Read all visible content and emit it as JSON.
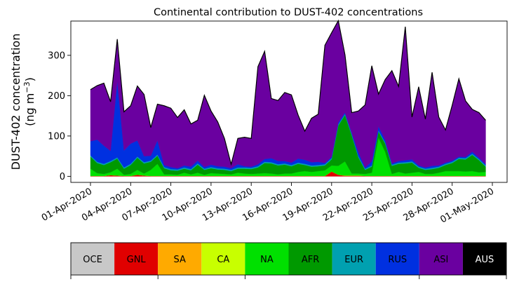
{
  "chart_data": {
    "type": "area",
    "title": "Continental contribution to DUST-402 concentrations",
    "ylabel_line1": "DUST-402 concentration",
    "ylabel_line2": "(ng m",
    "ylabel_sup": "−3",
    "ylabel_close": ")",
    "xlabel": "",
    "stacked": true,
    "start_date": "2020-04-01",
    "step_days": 0.5,
    "ylim": [
      -15,
      385
    ],
    "yticks": [
      0,
      100,
      200,
      300
    ],
    "xtick_labels": [
      "01-Apr-2020",
      "04-Apr-2020",
      "07-Apr-2020",
      "10-Apr-2020",
      "13-Apr-2020",
      "16-Apr-2020",
      "19-Apr-2020",
      "22-Apr-2020",
      "25-Apr-2020",
      "28-Apr-2020",
      "01-May-2020"
    ],
    "x_dates": [
      "2020-04-01 00:00",
      "2020-04-01 12:00",
      "2020-04-02 00:00",
      "2020-04-02 12:00",
      "2020-04-03 00:00",
      "2020-04-03 12:00",
      "2020-04-04 00:00",
      "2020-04-04 12:00",
      "2020-04-05 00:00",
      "2020-04-05 12:00",
      "2020-04-06 00:00",
      "2020-04-06 12:00",
      "2020-04-07 00:00",
      "2020-04-07 12:00",
      "2020-04-08 00:00",
      "2020-04-08 12:00",
      "2020-04-09 00:00",
      "2020-04-09 12:00",
      "2020-04-10 00:00",
      "2020-04-10 12:00",
      "2020-04-11 00:00",
      "2020-04-11 12:00",
      "2020-04-12 00:00",
      "2020-04-12 12:00",
      "2020-04-13 00:00",
      "2020-04-13 12:00",
      "2020-04-14 00:00",
      "2020-04-14 12:00",
      "2020-04-15 00:00",
      "2020-04-15 12:00",
      "2020-04-16 00:00",
      "2020-04-16 12:00",
      "2020-04-17 00:00",
      "2020-04-17 12:00",
      "2020-04-18 00:00",
      "2020-04-18 12:00",
      "2020-04-19 00:00",
      "2020-04-19 12:00",
      "2020-04-20 00:00",
      "2020-04-20 12:00",
      "2020-04-21 00:00",
      "2020-04-21 12:00",
      "2020-04-22 00:00",
      "2020-04-22 12:00",
      "2020-04-23 00:00",
      "2020-04-23 12:00",
      "2020-04-24 00:00",
      "2020-04-24 12:00",
      "2020-04-25 00:00",
      "2020-04-25 12:00",
      "2020-04-26 00:00",
      "2020-04-26 12:00",
      "2020-04-27 00:00",
      "2020-04-27 12:00",
      "2020-04-28 00:00",
      "2020-04-28 12:00",
      "2020-04-29 00:00",
      "2020-04-29 12:00",
      "2020-04-30 00:00",
      "2020-04-30 12:00"
    ],
    "series": [
      {
        "name": "OCE",
        "color": "#c8c8c8",
        "values": [
          0,
          0,
          0,
          0,
          0,
          0,
          0,
          0,
          0,
          0,
          0,
          0,
          0,
          0,
          0,
          0,
          0,
          0,
          0,
          0,
          0,
          0,
          0,
          0,
          0,
          0,
          0,
          0,
          0,
          0,
          0,
          0,
          0,
          0,
          0,
          0,
          0,
          0,
          0,
          0,
          0,
          0,
          0,
          0,
          0,
          0,
          0,
          0,
          0,
          0,
          0,
          0,
          0,
          0,
          0,
          0,
          0,
          0,
          0,
          0
        ]
      },
      {
        "name": "GNL",
        "color": "#e00000",
        "values": [
          1,
          1,
          1,
          3,
          2,
          1,
          1,
          4,
          2,
          1,
          1,
          1,
          1,
          1,
          1,
          1,
          1,
          1,
          1,
          1,
          1,
          1,
          1,
          1,
          1,
          1,
          1,
          1,
          1,
          1,
          1,
          1,
          1,
          1,
          1,
          1,
          12,
          4,
          1,
          1,
          1,
          1,
          1,
          1,
          1,
          1,
          1,
          1,
          1,
          1,
          1,
          1,
          1,
          1,
          1,
          1,
          1,
          1,
          1,
          1
        ]
      },
      {
        "name": "SA",
        "color": "#ffaa00",
        "values": [
          0,
          0,
          0,
          0,
          0,
          0,
          0,
          0,
          0,
          0,
          0,
          0,
          0,
          0,
          0,
          0,
          0,
          0,
          0,
          0,
          0,
          0,
          0,
          0,
          0,
          0,
          0,
          0,
          0,
          0,
          0,
          0,
          0,
          0,
          0,
          0,
          0,
          0,
          1,
          1,
          1,
          0,
          0,
          0,
          0,
          0,
          0,
          0,
          0,
          0,
          0,
          0,
          0,
          0,
          0,
          0,
          0,
          0,
          0,
          0
        ]
      },
      {
        "name": "CA",
        "color": "#c8ff00",
        "values": [
          0,
          0,
          0,
          0,
          0,
          0,
          0,
          0,
          0,
          0,
          0,
          0,
          0,
          0,
          0,
          0,
          0,
          0,
          0,
          0,
          0,
          0,
          0,
          0,
          0,
          0,
          0,
          0,
          0,
          0,
          0,
          0,
          0,
          0,
          0,
          0,
          0,
          0,
          0,
          0,
          0,
          0,
          0,
          0,
          0,
          0,
          0,
          0,
          0,
          0,
          0,
          0,
          0,
          0,
          0,
          0,
          0,
          0,
          0,
          0
        ]
      },
      {
        "name": "NA",
        "color": "#00e000",
        "values": [
          18,
          7,
          5,
          7,
          17,
          3,
          5,
          12,
          5,
          15,
          30,
          4,
          4,
          3,
          8,
          4,
          8,
          3,
          7,
          6,
          5,
          4,
          8,
          6,
          5,
          6,
          7,
          6,
          4,
          6,
          6,
          10,
          12,
          10,
          12,
          14,
          15,
          22,
          35,
          5,
          5,
          5,
          8,
          95,
          60,
          5,
          10,
          6,
          8,
          10,
          5,
          5,
          8,
          12,
          12,
          12,
          11,
          12,
          9,
          10
        ]
      },
      {
        "name": "AFR",
        "color": "#009900",
        "values": [
          30,
          25,
          22,
          25,
          25,
          15,
          22,
          30,
          25,
          20,
          20,
          15,
          10,
          10,
          10,
          10,
          20,
          12,
          12,
          10,
          10,
          8,
          10,
          12,
          12,
          15,
          25,
          25,
          22,
          22,
          18,
          20,
          15,
          13,
          12,
          12,
          15,
          100,
          115,
          95,
          40,
          10,
          15,
          15,
          20,
          20,
          20,
          25,
          25,
          10,
          10,
          12,
          12,
          15,
          20,
          30,
          30,
          40,
          30,
          13
        ]
      },
      {
        "name": "EUR",
        "color": "#00a0b0",
        "values": [
          3,
          3,
          3,
          3,
          3,
          3,
          3,
          3,
          3,
          3,
          3,
          3,
          3,
          3,
          3,
          3,
          3,
          3,
          3,
          3,
          3,
          3,
          3,
          3,
          3,
          3,
          3,
          3,
          3,
          3,
          3,
          3,
          3,
          3,
          3,
          3,
          3,
          3,
          3,
          3,
          3,
          3,
          3,
          3,
          3,
          3,
          3,
          3,
          3,
          3,
          3,
          3,
          3,
          3,
          3,
          3,
          3,
          3,
          3,
          3
        ]
      },
      {
        "name": "RUS",
        "color": "#0030e0",
        "values": [
          35,
          55,
          45,
          25,
          190,
          42,
          50,
          40,
          15,
          12,
          35,
          5,
          5,
          3,
          5,
          6,
          7,
          4,
          6,
          5,
          5,
          4,
          8,
          3,
          3,
          5,
          7,
          10,
          8,
          6,
          6,
          10,
          10,
          8,
          8,
          3,
          3,
          5,
          3,
          3,
          10,
          3,
          10,
          10,
          6,
          3,
          4,
          5,
          5,
          3,
          3,
          5,
          3,
          3,
          3,
          3,
          3,
          5,
          3,
          3
        ]
      },
      {
        "name": "ASI",
        "color": "#6a00a0",
        "values": [
          128,
          134,
          155,
          122,
          103,
          96,
          94,
          135,
          153,
          70,
          90,
          147,
          146,
          126,
          138,
          106,
          100,
          178,
          133,
          110,
          70,
          10,
          64,
          72,
          70,
          242,
          267,
          148,
          150,
          170,
          168,
          108,
          71,
          109,
          118,
          292,
          308,
          252,
          143,
          50,
          102,
          155,
          237,
          80,
          150,
          230,
          185,
          331,
          105,
          195,
          120,
          232,
          120,
          81,
          137,
          193,
          139,
          105,
          112,
          109
        ]
      },
      {
        "name": "AUS",
        "color": "#000000",
        "values": [
          0,
          0,
          0,
          0,
          0,
          0,
          0,
          0,
          0,
          0,
          0,
          0,
          0,
          0,
          0,
          0,
          0,
          0,
          0,
          0,
          0,
          0,
          0,
          0,
          0,
          0,
          0,
          0,
          0,
          0,
          0,
          0,
          0,
          0,
          0,
          0,
          0,
          0,
          0,
          0,
          0,
          0,
          0,
          0,
          0,
          0,
          0,
          0,
          0,
          0,
          0,
          0,
          0,
          0,
          0,
          0,
          0,
          0,
          0,
          0
        ]
      }
    ],
    "legend_labels": [
      "OCE",
      "GNL",
      "SA",
      "CA",
      "NA",
      "AFR",
      "EUR",
      "RUS",
      "ASI",
      "AUS"
    ],
    "legend_colors": [
      "#c8c8c8",
      "#e00000",
      "#ffaa00",
      "#c8ff00",
      "#00e000",
      "#009900",
      "#00a0b0",
      "#0030e0",
      "#6a00a0",
      "#000000"
    ],
    "legend_placement": "bottom colorbar",
    "grid": false
  }
}
